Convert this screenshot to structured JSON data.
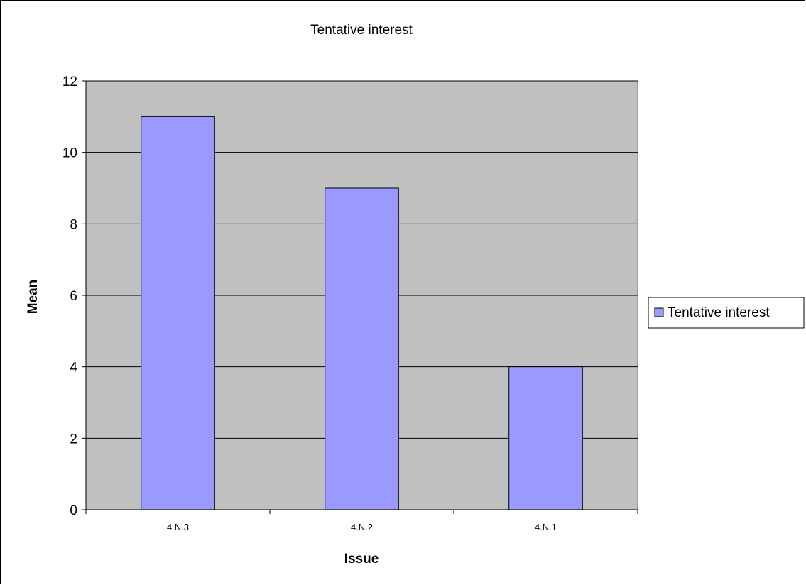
{
  "chart_data": {
    "type": "bar",
    "title": "Tentative interest",
    "xlabel": "Issue",
    "ylabel": "Mean",
    "categories": [
      "4.N.3",
      "4.N.2",
      "4.N.1"
    ],
    "series": [
      {
        "name": "Tentative interest",
        "values": [
          11,
          9,
          4
        ]
      }
    ],
    "ylim": [
      0,
      12
    ],
    "yticks": [
      0,
      2,
      4,
      6,
      8,
      10,
      12
    ],
    "ytick_labels": [
      "0",
      "2",
      "4",
      "6",
      "8",
      "10",
      "12"
    ],
    "grid": true,
    "legend": "right",
    "colors": {
      "bar_fill": "#9999ff",
      "plot_background": "#c0c0c0",
      "border": "#000000"
    }
  }
}
